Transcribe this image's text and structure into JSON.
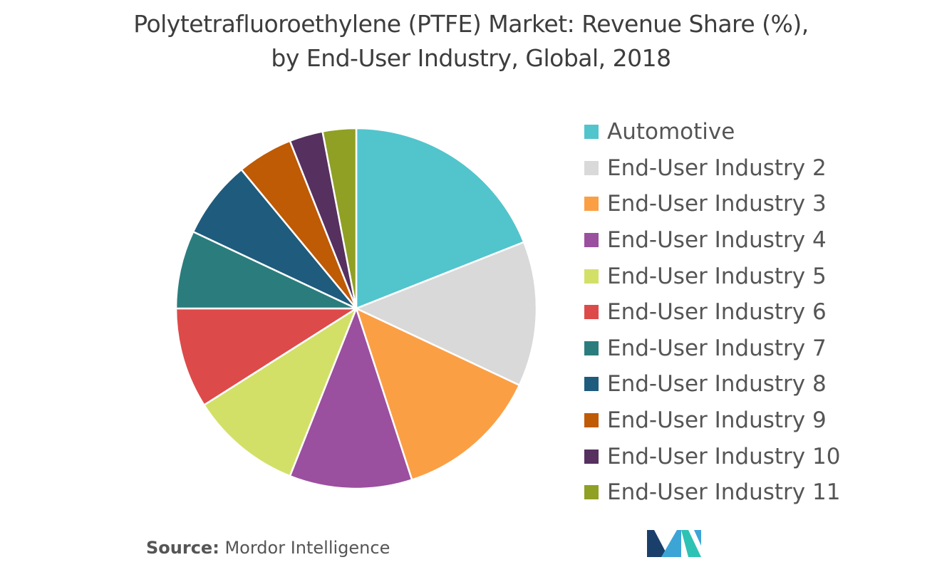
{
  "title_line1": "Polytetrafluoroethylene (PTFE) Market: Revenue Share (%),",
  "title_line2": "by End-User Industry, Global, 2018",
  "source": {
    "label": "Source:",
    "value": "Mordor Intelligence"
  },
  "chart_data": {
    "type": "pie",
    "title": "Polytetrafluoroethylene (PTFE) Market: Revenue Share (%), by End-User Industry, Global, 2018",
    "legend_position": "right",
    "start_angle": "top, clockwise",
    "categories": [
      "Automotive",
      "End-User Industry 2",
      "End-User Industry 3",
      "End-User Industry 4",
      "End-User Industry 5",
      "End-User Industry 6",
      "End-User Industry 7",
      "End-User Industry 8",
      "End-User Industry 9",
      "End-User Industry 10",
      "End-User Industry 11"
    ],
    "values": [
      19,
      13,
      13,
      11,
      10,
      9,
      7,
      7,
      5,
      3,
      3
    ],
    "colors": [
      "#52c4cc",
      "#d9d9d9",
      "#fb9f45",
      "#9b4f9f",
      "#d3e068",
      "#dd4a4a",
      "#2b7d7d",
      "#1f5b7d",
      "#bf5a05",
      "#56305f",
      "#8fa024"
    ]
  },
  "logo": {
    "colors": [
      "#1b3f6b",
      "#3ca5d6",
      "#2dc2b4"
    ]
  }
}
